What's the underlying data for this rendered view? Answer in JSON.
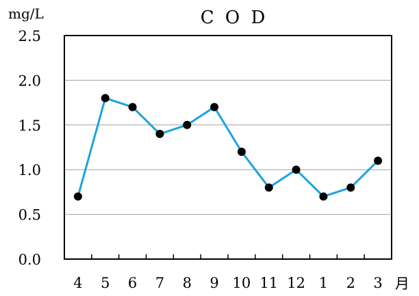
{
  "chart_data": {
    "type": "line",
    "title": "C O D",
    "ylabel": "mg/L",
    "xlabel": "月",
    "categories": [
      "4",
      "5",
      "6",
      "7",
      "8",
      "9",
      "10",
      "11",
      "12",
      "1",
      "2",
      "3"
    ],
    "series": [
      {
        "values": [
          0.7,
          1.8,
          1.7,
          1.4,
          1.5,
          1.7,
          1.2,
          0.8,
          1.0,
          0.7,
          0.8,
          1.1
        ]
      }
    ],
    "ylim": [
      0.0,
      2.5
    ],
    "yticks": [
      "0.0",
      "0.5",
      "1.0",
      "1.5",
      "2.0",
      "2.5"
    ],
    "grid": true,
    "legend": "none",
    "colors": {
      "line": "#1aa3e0",
      "marker": "#000000",
      "grid": "#a0a0a0",
      "axis": "#000000"
    }
  }
}
